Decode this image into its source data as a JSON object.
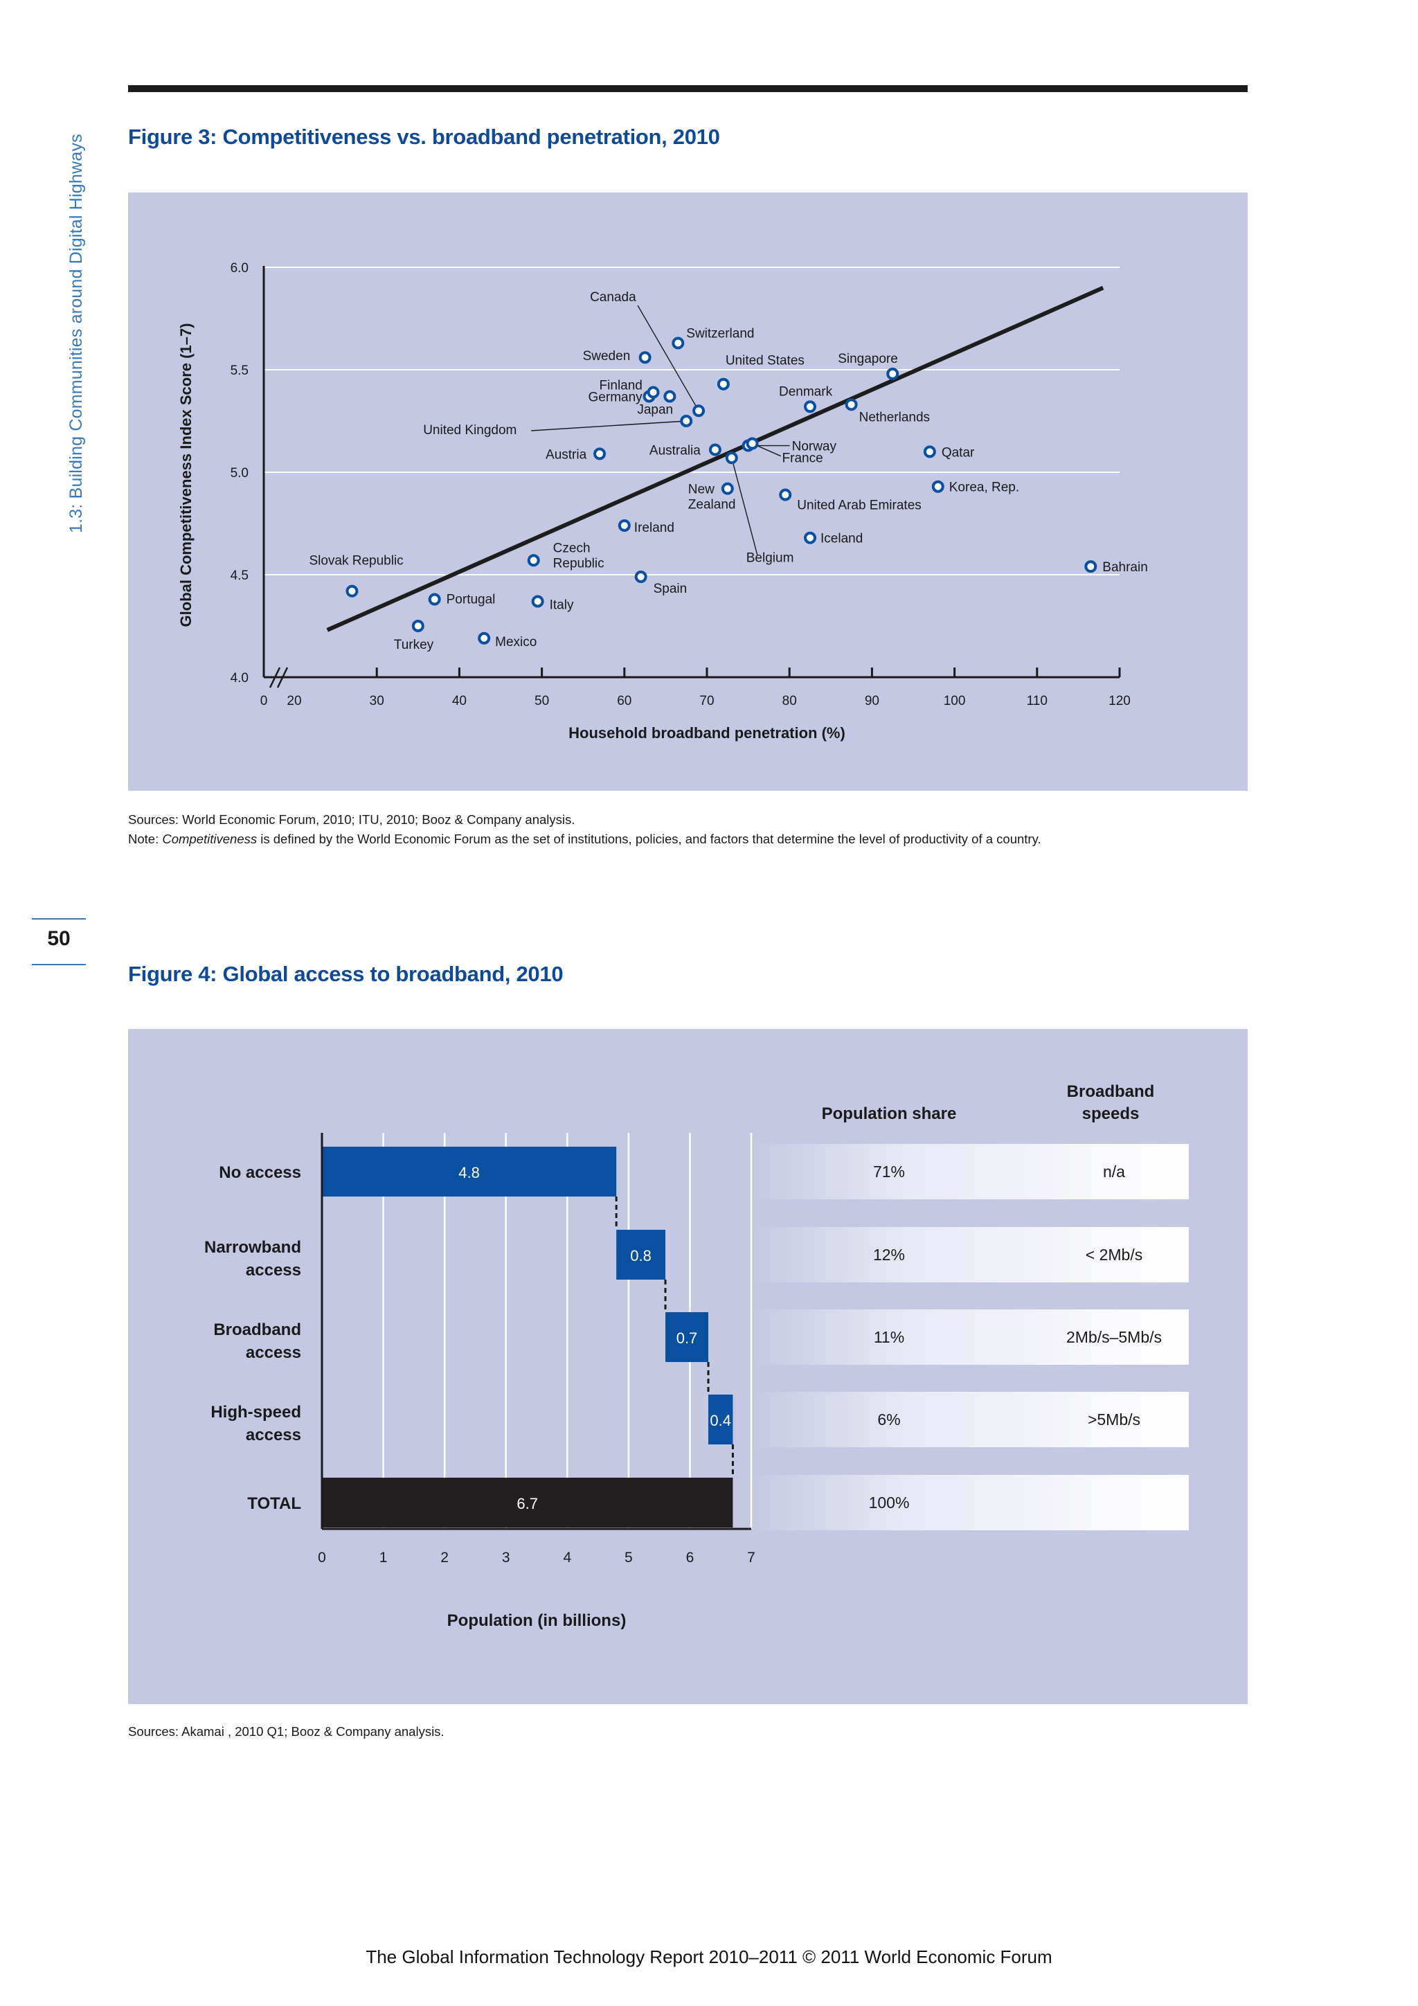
{
  "side_header": "1.3: Building Communities around Digital Highways",
  "page_number": "50",
  "footer": "The Global Information Technology Report 2010–2011 © 2011 World Economic Forum",
  "colors": {
    "title_blue": "#0e4a97",
    "panel_bg": "#c5c8e2",
    "bar_blue": "#0a50a0",
    "bar_total": "#231f20"
  },
  "figure3": {
    "title": "Figure 3: Competitiveness vs. broadband penetration, 2010",
    "sources": "Sources: World Economic Forum, 2010; ITU, 2010; Booz & Company analysis.",
    "note_prefix": "Note: ",
    "note_em": "Competitiveness",
    "note_rest": " is defined by the World Economic Forum as the set of institutions, policies, and factors that determine the level of productivity of a country."
  },
  "figure4": {
    "title": "Figure 4: Global access to broadband, 2010",
    "sources": "Sources: Akamai , 2010 Q1; Booz & Company analysis.",
    "col_population_share": "Population share",
    "col_speeds": [
      "Broadband",
      "speeds"
    ]
  },
  "chart_data": [
    {
      "type": "scatter",
      "ylabel": "Global Competitiveness Index Score (1–7)",
      "xlabel": "Household broadband penetration (%)",
      "xlim": [
        20,
        120
      ],
      "ylim": [
        4.0,
        6.0
      ],
      "x_ticks": [
        "0",
        "20",
        "30",
        "40",
        "50",
        "60",
        "70",
        "80",
        "90",
        "100",
        "110",
        "120"
      ],
      "y_ticks": [
        "4.0",
        "4.5",
        "5.0",
        "5.5",
        "6.0"
      ],
      "grid": "horizontal",
      "trendline": {
        "from": [
          24,
          4.23
        ],
        "to": [
          118,
          5.9
        ]
      },
      "points": [
        {
          "label": "Slovak Republic",
          "x": 27,
          "y": 4.42
        },
        {
          "label": "Turkey",
          "x": 35,
          "y": 4.25
        },
        {
          "label": "Portugal",
          "x": 37,
          "y": 4.38
        },
        {
          "label": "Mexico",
          "x": 43,
          "y": 4.19
        },
        {
          "label": "Czech Republic",
          "x": 49,
          "y": 4.57
        },
        {
          "label": "Italy",
          "x": 49.5,
          "y": 4.37
        },
        {
          "label": "Austria",
          "x": 57,
          "y": 5.09
        },
        {
          "label": "Ireland",
          "x": 60,
          "y": 4.74
        },
        {
          "label": "Spain",
          "x": 62,
          "y": 4.49
        },
        {
          "label": "Sweden",
          "x": 62.5,
          "y": 5.56
        },
        {
          "label": "Finland",
          "x": 63,
          "y": 5.37
        },
        {
          "label": "Germany",
          "x": 63.5,
          "y": 5.39
        },
        {
          "label": "Japan",
          "x": 65.5,
          "y": 5.37
        },
        {
          "label": "Switzerland",
          "x": 66.5,
          "y": 5.63
        },
        {
          "label": "United Kingdom",
          "x": 67.5,
          "y": 5.25
        },
        {
          "label": "Canada",
          "x": 69,
          "y": 5.3
        },
        {
          "label": "Australia",
          "x": 71,
          "y": 5.11
        },
        {
          "label": "United States",
          "x": 72,
          "y": 5.43
        },
        {
          "label": "New Zealand",
          "x": 72.5,
          "y": 4.92
        },
        {
          "label": "Belgium",
          "x": 73,
          "y": 5.07
        },
        {
          "label": "Norway",
          "x": 75,
          "y": 5.13
        },
        {
          "label": "France",
          "x": 75.5,
          "y": 5.14
        },
        {
          "label": "United Arab Emirates",
          "x": 79.5,
          "y": 4.89
        },
        {
          "label": "Denmark",
          "x": 82.5,
          "y": 5.32
        },
        {
          "label": "Iceland",
          "x": 82.5,
          "y": 4.68
        },
        {
          "label": "Netherlands",
          "x": 87.5,
          "y": 5.33
        },
        {
          "label": "Singapore",
          "x": 92.5,
          "y": 5.48
        },
        {
          "label": "Qatar",
          "x": 97,
          "y": 5.1
        },
        {
          "label": "Korea, Rep.",
          "x": 98,
          "y": 4.93
        },
        {
          "label": "Bahrain",
          "x": 116.5,
          "y": 4.54
        }
      ]
    },
    {
      "type": "bar",
      "orientation": "horizontal",
      "subtype": "waterfall",
      "xlabel": "Population (in billions)",
      "xlim": [
        0,
        7
      ],
      "x_ticks": [
        "0",
        "1",
        "2",
        "3",
        "4",
        "5",
        "6",
        "7"
      ],
      "categories": [
        {
          "label": [
            "No access"
          ],
          "start": 0,
          "value": 4.8,
          "value_label": "4.8",
          "share": "71%",
          "speed": "n/a"
        },
        {
          "label": [
            "Narrowband",
            "access"
          ],
          "start": 4.8,
          "value": 0.8,
          "value_label": "0.8",
          "share": "12%",
          "speed": "< 2Mb/s"
        },
        {
          "label": [
            "Broadband",
            "access"
          ],
          "start": 5.6,
          "value": 0.7,
          "value_label": "0.7",
          "share": "11%",
          "speed": "2Mb/s–5Mb/s"
        },
        {
          "label": [
            "High-speed",
            "access"
          ],
          "start": 6.3,
          "value": 0.4,
          "value_label": "0.4",
          "share": "6%",
          "speed": ">5Mb/s"
        },
        {
          "label": [
            "TOTAL"
          ],
          "start": 0,
          "value": 6.7,
          "value_label": "6.7",
          "share": "100%",
          "speed": "",
          "total": true
        }
      ]
    }
  ]
}
